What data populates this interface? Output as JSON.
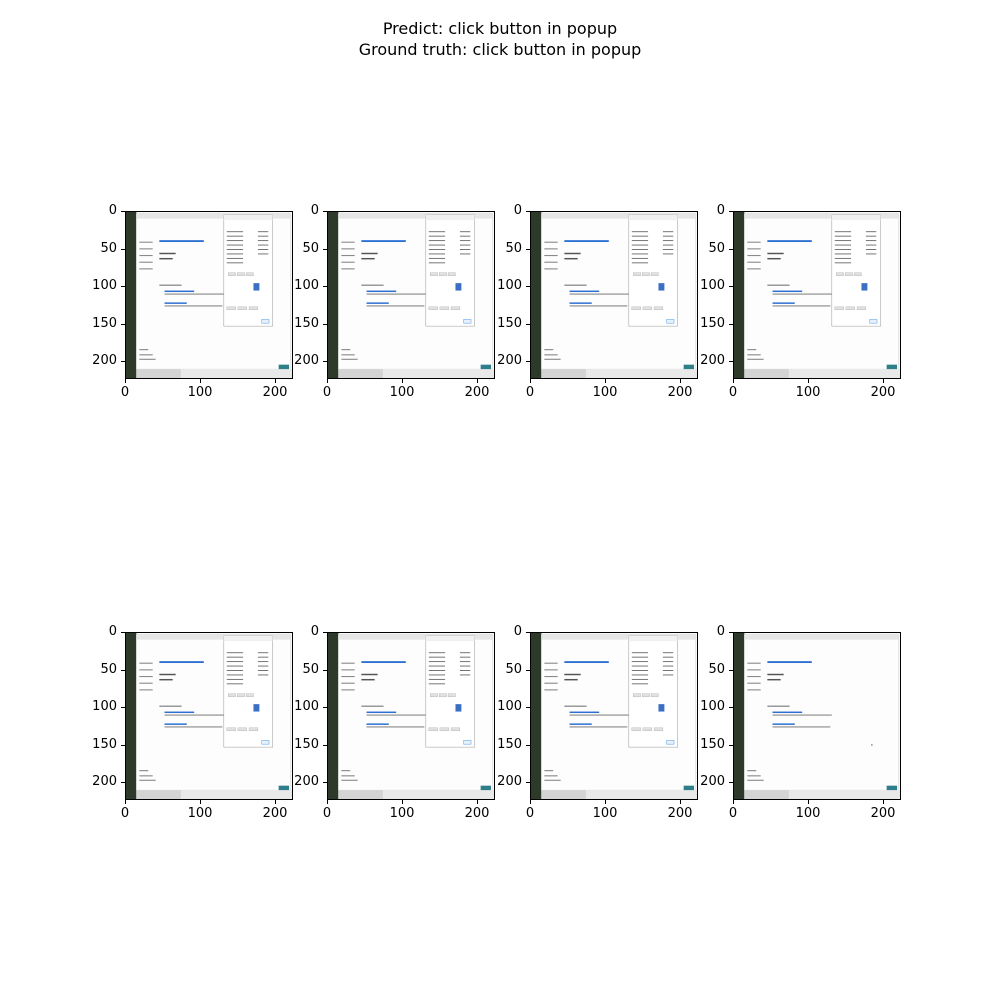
{
  "figure": {
    "title_line1": "Predict: click button in popup",
    "title_line2": "Ground truth: click button in popup"
  },
  "axes": {
    "x_ticks": [
      "0",
      "100",
      "200"
    ],
    "y_ticks": [
      "0",
      "50",
      "100",
      "150",
      "200"
    ]
  },
  "panels": [
    {
      "popup_visible": true
    },
    {
      "popup_visible": true
    },
    {
      "popup_visible": true
    },
    {
      "popup_visible": true
    },
    {
      "popup_visible": true
    },
    {
      "popup_visible": true
    },
    {
      "popup_visible": true
    },
    {
      "popup_visible": false
    }
  ]
}
